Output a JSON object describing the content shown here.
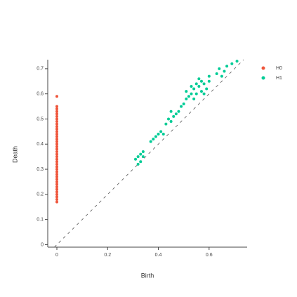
{
  "chart_data": {
    "type": "scatter",
    "x_label": "Birth",
    "y_label": "Death",
    "xlim": [
      -0.036,
      0.75
    ],
    "ylim": [
      -0.01,
      0.736
    ],
    "xticks": [
      0,
      0.2,
      0.4,
      0.6
    ],
    "yticks": [
      0,
      0.1,
      0.2,
      0.3,
      0.4,
      0.5,
      0.6,
      0.7
    ],
    "legend": "top-right",
    "series": [
      {
        "name": "H0",
        "color": "#ef553b",
        "x": [
          0,
          0,
          0,
          0,
          0,
          0,
          0,
          0,
          0,
          0,
          0,
          0,
          0,
          0,
          0,
          0,
          0,
          0,
          0,
          0,
          0,
          0,
          0,
          0,
          0,
          0,
          0,
          0,
          0,
          0,
          0,
          0,
          0,
          0,
          0,
          0,
          0,
          0,
          0,
          0
        ],
        "values": [
          0.17,
          0.18,
          0.19,
          0.2,
          0.21,
          0.22,
          0.23,
          0.24,
          0.25,
          0.26,
          0.27,
          0.28,
          0.29,
          0.3,
          0.31,
          0.32,
          0.33,
          0.34,
          0.35,
          0.36,
          0.37,
          0.38,
          0.39,
          0.4,
          0.41,
          0.42,
          0.43,
          0.44,
          0.45,
          0.46,
          0.47,
          0.48,
          0.49,
          0.5,
          0.51,
          0.52,
          0.53,
          0.54,
          0.55,
          0.59
        ]
      },
      {
        "name": "H1",
        "color": "#00cc96",
        "x": [
          0.31,
          0.32,
          0.33,
          0.33,
          0.34,
          0.32,
          0.34,
          0.37,
          0.38,
          0.4,
          0.41,
          0.42,
          0.39,
          0.43,
          0.44,
          0.45,
          0.46,
          0.47,
          0.48,
          0.45,
          0.49,
          0.5,
          0.51,
          0.52,
          0.53,
          0.54,
          0.55,
          0.56,
          0.57,
          0.58,
          0.55,
          0.53,
          0.57,
          0.59,
          0.6,
          0.58,
          0.54,
          0.51,
          0.56,
          0.6,
          0.63,
          0.64,
          0.66,
          0.67,
          0.69,
          0.71,
          0.65
        ],
        "values": [
          0.34,
          0.35,
          0.33,
          0.36,
          0.37,
          0.32,
          0.35,
          0.41,
          0.42,
          0.44,
          0.45,
          0.44,
          0.43,
          0.48,
          0.5,
          0.49,
          0.51,
          0.52,
          0.53,
          0.53,
          0.55,
          0.56,
          0.58,
          0.59,
          0.6,
          0.62,
          0.6,
          0.63,
          0.61,
          0.64,
          0.64,
          0.63,
          0.65,
          0.62,
          0.65,
          0.6,
          0.58,
          0.61,
          0.66,
          0.67,
          0.68,
          0.7,
          0.69,
          0.71,
          0.72,
          0.73,
          0.67
        ]
      }
    ]
  }
}
